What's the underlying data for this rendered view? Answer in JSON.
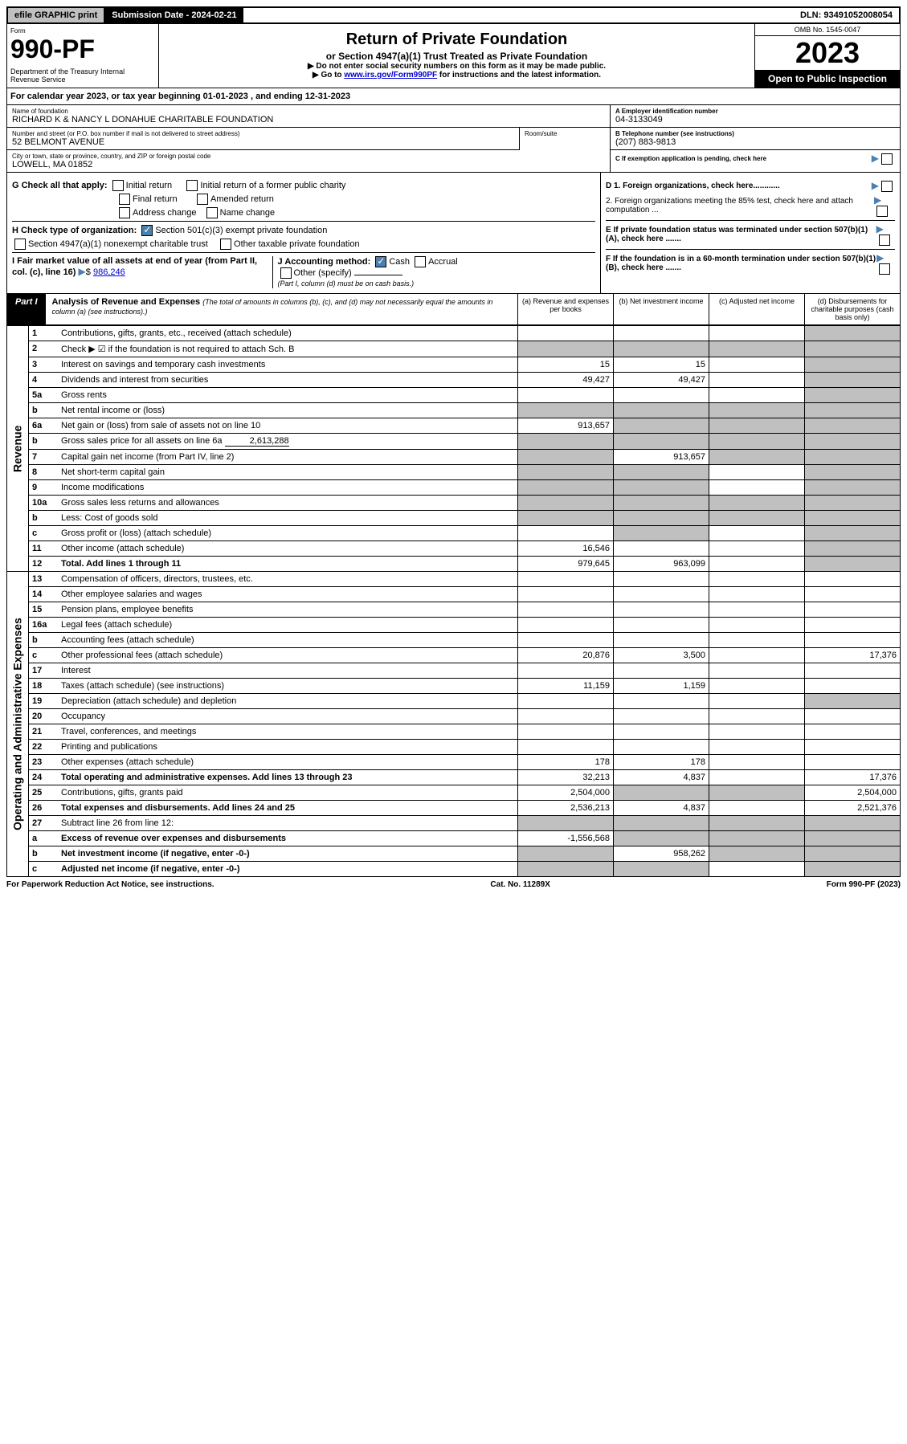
{
  "topbar": {
    "efile": "efile GRAPHIC print",
    "submission": "Submission Date - 2024-02-21",
    "dln": "DLN: 93491052008054"
  },
  "header": {
    "form_label": "Form",
    "form_num": "990-PF",
    "dept": "Department of the Treasury\nInternal Revenue Service",
    "title": "Return of Private Foundation",
    "subtitle": "or Section 4947(a)(1) Trust Treated as Private Foundation",
    "inst1": "▶ Do not enter social security numbers on this form as it may be made public.",
    "inst2_pre": "▶ Go to ",
    "inst2_link": "www.irs.gov/Form990PF",
    "inst2_post": " for instructions and the latest information.",
    "omb": "OMB No. 1545-0047",
    "year": "2023",
    "open_public": "Open to Public Inspection"
  },
  "calendar": "For calendar year 2023, or tax year beginning 01-01-2023                              , and ending 12-31-2023",
  "info": {
    "name_label": "Name of foundation",
    "name": "RICHARD K & NANCY L DONAHUE CHARITABLE FOUNDATION",
    "addr_label": "Number and street (or P.O. box number if mail is not delivered to street address)",
    "addr": "52 BELMONT AVENUE",
    "room_label": "Room/suite",
    "city_label": "City or town, state or province, country, and ZIP or foreign postal code",
    "city": "LOWELL, MA  01852",
    "ein_label": "A Employer identification number",
    "ein": "04-3133049",
    "phone_label": "B Telephone number (see instructions)",
    "phone": "(207) 883-9813",
    "c_label": "C If exemption application is pending, check here"
  },
  "checks": {
    "g_label": "G Check all that apply:",
    "g_initial": "Initial return",
    "g_initial_former": "Initial return of a former public charity",
    "g_final": "Final return",
    "g_amended": "Amended return",
    "g_address": "Address change",
    "g_name": "Name change",
    "h_label": "H Check type of organization:",
    "h_501c3": "Section 501(c)(3) exempt private foundation",
    "h_4947": "Section 4947(a)(1) nonexempt charitable trust",
    "h_other": "Other taxable private foundation",
    "i_label": "I Fair market value of all assets at end of year (from Part II, col. (c), line 16)",
    "i_value": "986,246",
    "j_label": "J Accounting method:",
    "j_cash": "Cash",
    "j_accrual": "Accrual",
    "j_other": "Other (specify)",
    "j_note": "(Part I, column (d) must be on cash basis.)",
    "d1": "D 1. Foreign organizations, check here............",
    "d2": "2. Foreign organizations meeting the 85% test, check here and attach computation ...",
    "e": "E  If private foundation status was terminated under section 507(b)(1)(A), check here .......",
    "f": "F  If the foundation is in a 60-month termination under section 507(b)(1)(B), check here ......."
  },
  "part1": {
    "label": "Part I",
    "title": "Analysis of Revenue and Expenses",
    "note": "(The total of amounts in columns (b), (c), and (d) may not necessarily equal the amounts in column (a) (see instructions).)",
    "col_a": "(a)   Revenue and expenses per books",
    "col_b": "(b)   Net investment income",
    "col_c": "(c)   Adjusted net income",
    "col_d": "(d)   Disbursements for charitable purposes (cash basis only)"
  },
  "sections": {
    "revenue": "Revenue",
    "expenses": "Operating and Administrative Expenses"
  },
  "rows": [
    {
      "n": "1",
      "desc": "Contributions, gifts, grants, etc., received (attach schedule)",
      "a": "",
      "b": "",
      "c": "",
      "d": "",
      "d_shade": true
    },
    {
      "n": "2",
      "desc": "Check ▶ ☑ if the foundation is not required to attach Sch. B",
      "a": "",
      "b": "",
      "c": "",
      "d": "",
      "a_shade": true,
      "b_shade": true,
      "c_shade": true,
      "d_shade": true,
      "bold_not": true
    },
    {
      "n": "3",
      "desc": "Interest on savings and temporary cash investments",
      "a": "15",
      "b": "15",
      "c": "",
      "d": "",
      "d_shade": true
    },
    {
      "n": "4",
      "desc": "Dividends and interest from securities",
      "a": "49,427",
      "b": "49,427",
      "c": "",
      "d": "",
      "d_shade": true
    },
    {
      "n": "5a",
      "desc": "Gross rents",
      "a": "",
      "b": "",
      "c": "",
      "d": "",
      "d_shade": true
    },
    {
      "n": "b",
      "desc": "Net rental income or (loss)",
      "a": "",
      "b": "",
      "c": "",
      "d": "",
      "a_shade": true,
      "b_shade": true,
      "c_shade": true,
      "d_shade": true
    },
    {
      "n": "6a",
      "desc": "Net gain or (loss) from sale of assets not on line 10",
      "a": "913,657",
      "b": "",
      "c": "",
      "d": "",
      "b_shade": true,
      "c_shade": true,
      "d_shade": true
    },
    {
      "n": "b",
      "desc": "Gross sales price for all assets on line 6a",
      "inline": "2,613,288",
      "a": "",
      "b": "",
      "c": "",
      "d": "",
      "a_shade": true,
      "b_shade": true,
      "c_shade": true,
      "d_shade": true
    },
    {
      "n": "7",
      "desc": "Capital gain net income (from Part IV, line 2)",
      "a": "",
      "b": "913,657",
      "c": "",
      "d": "",
      "a_shade": true,
      "c_shade": true,
      "d_shade": true
    },
    {
      "n": "8",
      "desc": "Net short-term capital gain",
      "a": "",
      "b": "",
      "c": "",
      "d": "",
      "a_shade": true,
      "b_shade": true,
      "d_shade": true
    },
    {
      "n": "9",
      "desc": "Income modifications",
      "a": "",
      "b": "",
      "c": "",
      "d": "",
      "a_shade": true,
      "b_shade": true,
      "d_shade": true
    },
    {
      "n": "10a",
      "desc": "Gross sales less returns and allowances",
      "a": "",
      "b": "",
      "c": "",
      "d": "",
      "a_shade": true,
      "b_shade": true,
      "c_shade": true,
      "d_shade": true
    },
    {
      "n": "b",
      "desc": "Less: Cost of goods sold",
      "a": "",
      "b": "",
      "c": "",
      "d": "",
      "a_shade": true,
      "b_shade": true,
      "c_shade": true,
      "d_shade": true
    },
    {
      "n": "c",
      "desc": "Gross profit or (loss) (attach schedule)",
      "a": "",
      "b": "",
      "c": "",
      "d": "",
      "b_shade": true,
      "d_shade": true
    },
    {
      "n": "11",
      "desc": "Other income (attach schedule)",
      "a": "16,546",
      "b": "",
      "c": "",
      "d": "",
      "d_shade": true
    },
    {
      "n": "12",
      "desc": "Total. Add lines 1 through 11",
      "a": "979,645",
      "b": "963,099",
      "c": "",
      "d": "",
      "bold": true,
      "d_shade": true
    },
    {
      "n": "13",
      "desc": "Compensation of officers, directors, trustees, etc.",
      "a": "",
      "b": "",
      "c": "",
      "d": "",
      "section": "expenses"
    },
    {
      "n": "14",
      "desc": "Other employee salaries and wages",
      "a": "",
      "b": "",
      "c": "",
      "d": ""
    },
    {
      "n": "15",
      "desc": "Pension plans, employee benefits",
      "a": "",
      "b": "",
      "c": "",
      "d": ""
    },
    {
      "n": "16a",
      "desc": "Legal fees (attach schedule)",
      "a": "",
      "b": "",
      "c": "",
      "d": ""
    },
    {
      "n": "b",
      "desc": "Accounting fees (attach schedule)",
      "a": "",
      "b": "",
      "c": "",
      "d": ""
    },
    {
      "n": "c",
      "desc": "Other professional fees (attach schedule)",
      "a": "20,876",
      "b": "3,500",
      "c": "",
      "d": "17,376"
    },
    {
      "n": "17",
      "desc": "Interest",
      "a": "",
      "b": "",
      "c": "",
      "d": ""
    },
    {
      "n": "18",
      "desc": "Taxes (attach schedule) (see instructions)",
      "a": "11,159",
      "b": "1,159",
      "c": "",
      "d": ""
    },
    {
      "n": "19",
      "desc": "Depreciation (attach schedule) and depletion",
      "a": "",
      "b": "",
      "c": "",
      "d": "",
      "d_shade": true
    },
    {
      "n": "20",
      "desc": "Occupancy",
      "a": "",
      "b": "",
      "c": "",
      "d": ""
    },
    {
      "n": "21",
      "desc": "Travel, conferences, and meetings",
      "a": "",
      "b": "",
      "c": "",
      "d": ""
    },
    {
      "n": "22",
      "desc": "Printing and publications",
      "a": "",
      "b": "",
      "c": "",
      "d": ""
    },
    {
      "n": "23",
      "desc": "Other expenses (attach schedule)",
      "a": "178",
      "b": "178",
      "c": "",
      "d": ""
    },
    {
      "n": "24",
      "desc": "Total operating and administrative expenses. Add lines 13 through 23",
      "a": "32,213",
      "b": "4,837",
      "c": "",
      "d": "17,376",
      "bold": true
    },
    {
      "n": "25",
      "desc": "Contributions, gifts, grants paid",
      "a": "2,504,000",
      "b": "",
      "c": "",
      "d": "2,504,000",
      "b_shade": true,
      "c_shade": true
    },
    {
      "n": "26",
      "desc": "Total expenses and disbursements. Add lines 24 and 25",
      "a": "2,536,213",
      "b": "4,837",
      "c": "",
      "d": "2,521,376",
      "bold": true
    },
    {
      "n": "27",
      "desc": "Subtract line 26 from line 12:",
      "a": "",
      "b": "",
      "c": "",
      "d": "",
      "a_shade": true,
      "b_shade": true,
      "c_shade": true,
      "d_shade": true
    },
    {
      "n": "a",
      "desc": "Excess of revenue over expenses and disbursements",
      "a": "-1,556,568",
      "b": "",
      "c": "",
      "d": "",
      "bold": true,
      "b_shade": true,
      "c_shade": true,
      "d_shade": true
    },
    {
      "n": "b",
      "desc": "Net investment income (if negative, enter -0-)",
      "a": "",
      "b": "958,262",
      "c": "",
      "d": "",
      "bold": true,
      "a_shade": true,
      "c_shade": true,
      "d_shade": true
    },
    {
      "n": "c",
      "desc": "Adjusted net income (if negative, enter -0-)",
      "a": "",
      "b": "",
      "c": "",
      "d": "",
      "bold": true,
      "a_shade": true,
      "b_shade": true,
      "d_shade": true
    }
  ],
  "footer": {
    "left": "For Paperwork Reduction Act Notice, see instructions.",
    "mid": "Cat. No. 11289X",
    "right": "Form 990-PF (2023)"
  }
}
